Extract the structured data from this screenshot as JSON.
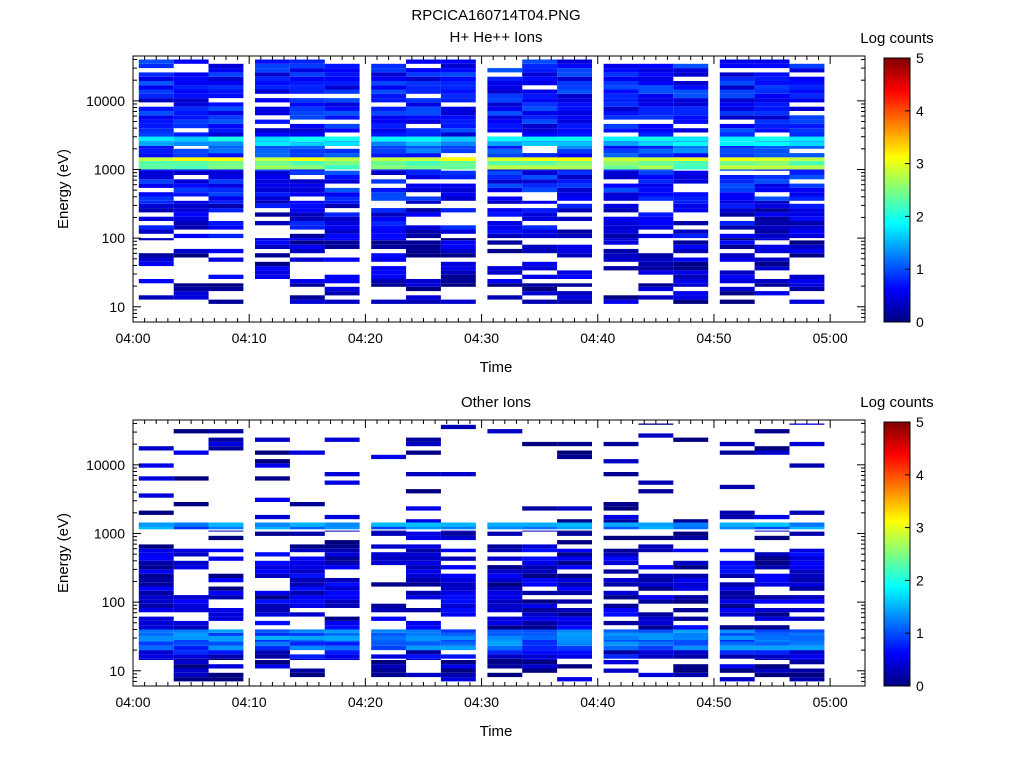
{
  "figure_title": "RPCICA160714T04.PNG",
  "colorbar": {
    "label": "Log counts",
    "ticks": [
      "0",
      "1",
      "2",
      "3",
      "4",
      "5"
    ],
    "range": [
      0,
      5
    ],
    "colormap": [
      "#00007f",
      "#0000ff",
      "#007fff",
      "#00ffff",
      "#7fff7f",
      "#ffff00",
      "#ff7f00",
      "#ff0000",
      "#7f0000"
    ]
  },
  "chart_data": [
    {
      "type": "heatmap",
      "title": "H+ He++ Ions",
      "xlabel": "Time",
      "ylabel": "Energy (eV)",
      "y_scale": "log",
      "xlim": [
        "04:00",
        "05:03"
      ],
      "ylim": [
        6,
        45000
      ],
      "x_ticks": [
        "04:00",
        "04:10",
        "04:20",
        "04:30",
        "04:40",
        "04:50",
        "05:00"
      ],
      "y_ticks": [
        "10",
        "100",
        "1000",
        "10000"
      ],
      "time_bins": [
        "04:02",
        "04:05",
        "04:08",
        "04:12",
        "04:15",
        "04:18",
        "04:22",
        "04:25",
        "04:28",
        "04:32",
        "04:35",
        "04:38",
        "04:42",
        "04:45",
        "04:48",
        "04:52",
        "04:55",
        "04:58"
      ],
      "bands": [
        {
          "e_lo": 11,
          "e_hi": 22,
          "level": 0.2,
          "density": 0.55
        },
        {
          "e_lo": 22,
          "e_hi": 100,
          "level": 0.35,
          "density": 0.55
        },
        {
          "e_lo": 100,
          "e_hi": 350,
          "level": 0.5,
          "density": 0.7
        },
        {
          "e_lo": 350,
          "e_hi": 1000,
          "level": 0.7,
          "density": 0.85
        },
        {
          "e_lo": 1000,
          "e_hi": 1500,
          "level": 2.5,
          "density": 1.0
        },
        {
          "e_lo": 1500,
          "e_hi": 2200,
          "level": 1.0,
          "density": 0.9
        },
        {
          "e_lo": 2200,
          "e_hi": 3000,
          "level": 1.6,
          "density": 1.0
        },
        {
          "e_lo": 3000,
          "e_hi": 40000,
          "level": 0.7,
          "density": 0.85
        }
      ],
      "peak_lines": [
        {
          "energy": 1300,
          "level": 3.0
        },
        {
          "energy": 1150,
          "level": 2.4
        },
        {
          "energy": 2600,
          "level": 1.8
        }
      ]
    },
    {
      "type": "heatmap",
      "title": "Other Ions",
      "xlabel": "Time",
      "ylabel": "Energy (eV)",
      "y_scale": "log",
      "xlim": [
        "04:00",
        "05:03"
      ],
      "ylim": [
        6,
        45000
      ],
      "x_ticks": [
        "04:00",
        "04:10",
        "04:20",
        "04:30",
        "04:40",
        "04:50",
        "05:00"
      ],
      "y_ticks": [
        "10",
        "100",
        "1000",
        "10000"
      ],
      "time_bins": [
        "04:02",
        "04:05",
        "04:08",
        "04:12",
        "04:15",
        "04:18",
        "04:22",
        "04:25",
        "04:28",
        "04:32",
        "04:35",
        "04:38",
        "04:42",
        "04:45",
        "04:48",
        "04:52",
        "04:55",
        "04:58"
      ],
      "bands": [
        {
          "e_lo": 7,
          "e_hi": 15,
          "level": 0.2,
          "density": 0.6
        },
        {
          "e_lo": 15,
          "e_hi": 20,
          "level": 0.5,
          "density": 0.9
        },
        {
          "e_lo": 20,
          "e_hi": 40,
          "level": 1.1,
          "density": 1.0
        },
        {
          "e_lo": 40,
          "e_hi": 600,
          "level": 0.35,
          "density": 0.7
        },
        {
          "e_lo": 600,
          "e_hi": 1100,
          "level": 0.2,
          "density": 0.35
        },
        {
          "e_lo": 1150,
          "e_hi": 1350,
          "level": 1.2,
          "density": 1.0
        },
        {
          "e_lo": 1400,
          "e_hi": 40000,
          "level": 0.2,
          "density": 0.18
        }
      ],
      "peak_lines": [
        {
          "energy": 1250,
          "level": 1.4
        },
        {
          "energy": 28,
          "level": 1.3
        }
      ]
    }
  ]
}
